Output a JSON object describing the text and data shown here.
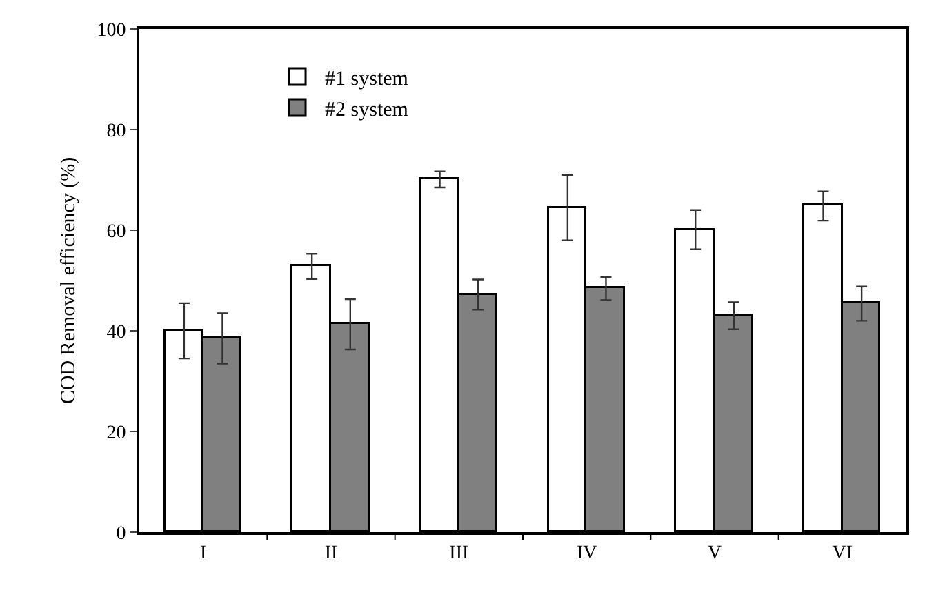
{
  "chart_data": {
    "type": "bar",
    "ylabel": "COD Removal efficiency (%)",
    "categories": [
      "I",
      "II",
      "III",
      "IV",
      "V",
      "VI"
    ],
    "series": [
      {
        "name": "#1 system",
        "color": "#ffffff",
        "values": [
          40,
          52.8,
          70.1,
          64.5,
          60.1,
          64.8
        ],
        "errors": [
          5.5,
          2.5,
          1.6,
          6.5,
          3.9,
          2.9
        ]
      },
      {
        "name": "#2 system",
        "color": "#808080",
        "values": [
          38.5,
          41.3,
          47.2,
          48.4,
          43,
          45.4
        ],
        "errors": [
          5,
          5,
          3,
          2.3,
          2.7,
          3.4
        ]
      }
    ],
    "ylim": [
      0,
      100
    ],
    "yticks": [
      0,
      20,
      40,
      60,
      80,
      100
    ],
    "grid": false,
    "legend": "top left"
  }
}
